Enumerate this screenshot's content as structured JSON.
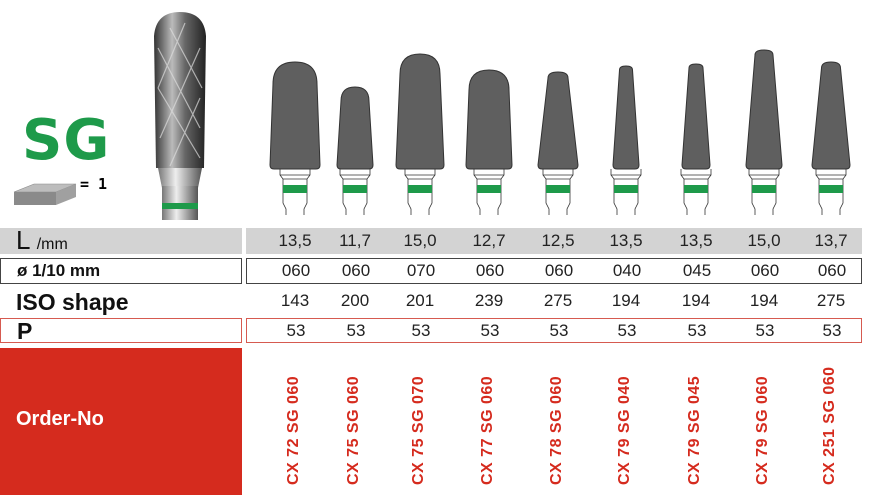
{
  "header": {
    "series_code": "SG",
    "pack_icon": "carbide-block-icon",
    "pack_quantity": "= 1",
    "product_photo": "carbide-bur-photo"
  },
  "colors": {
    "brand_green": "#1e9a4a",
    "order_red": "#d52b1e"
  },
  "rows": {
    "length": {
      "label_main": "L",
      "label_unit": "/mm",
      "values": [
        "13,5",
        "11,7",
        "15,0",
        "12,7",
        "12,5",
        "13,5",
        "13,5",
        "15,0",
        "13,7"
      ]
    },
    "diameter": {
      "label": "ø 1/10 mm",
      "values": [
        "060",
        "060",
        "070",
        "060",
        "060",
        "040",
        "045",
        "060",
        "060"
      ]
    },
    "iso_shape": {
      "label": "ISO shape",
      "values": [
        "143",
        "200",
        "201",
        "239",
        "275",
        "194",
        "194",
        "194",
        "275"
      ]
    },
    "pack": {
      "label": "P",
      "values": [
        "53",
        "53",
        "53",
        "53",
        "53",
        "53",
        "53",
        "53",
        "53"
      ]
    },
    "order_no": {
      "label": "Order-No",
      "values": [
        "CX 72 SG 060",
        "CX 75 SG 060",
        "CX 75 SG 070",
        "CX 77 SG 060",
        "CX 78 SG 060",
        "CX 79 SG 040",
        "CX 79 SG 045",
        "CX 79 SG 060",
        "CX 251 SG 060"
      ]
    }
  }
}
